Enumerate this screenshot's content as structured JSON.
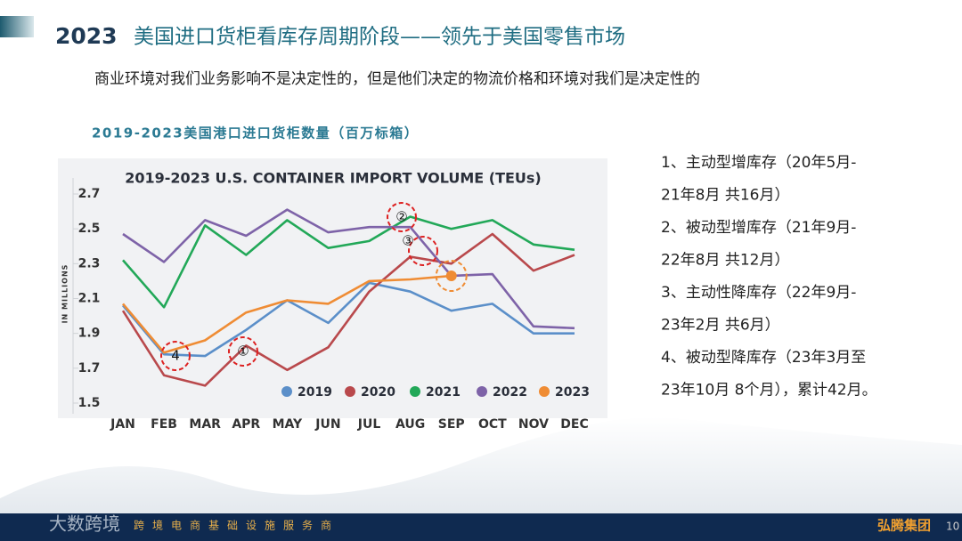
{
  "title_year": "2023",
  "title": "美国进口货柜看库存周期阶段——领先于美国零售市场",
  "subtitle": "商业环境对我们业务影响不是决定性的，但是他们决定的物流价格和环境对我们是决定性的",
  "chart_caption": "2019-2023美国港口进口货柜数量（百万标箱）",
  "chart_data": {
    "type": "line",
    "title": "2019-2023 U.S. CONTAINER IMPORT VOLUME (TEUs)",
    "y_label": "IN MILLIONS",
    "categories": [
      "JAN",
      "FEB",
      "MAR",
      "APR",
      "MAY",
      "JUN",
      "JUL",
      "AUG",
      "SEP",
      "OCT",
      "NOV",
      "DEC"
    ],
    "ylim": [
      1.5,
      2.7
    ],
    "yticks": [
      1.5,
      1.7,
      1.9,
      2.1,
      2.3,
      2.5,
      2.7
    ],
    "legend": "bottom-right",
    "series": [
      {
        "name": "2019",
        "color": "#5b8fc9",
        "values": [
          2.06,
          1.78,
          1.77,
          1.92,
          2.09,
          1.96,
          2.19,
          2.14,
          2.03,
          2.07,
          1.9,
          1.9
        ]
      },
      {
        "name": "2020",
        "color": "#b9494c",
        "values": [
          2.03,
          1.66,
          1.6,
          1.83,
          1.69,
          1.82,
          2.14,
          2.34,
          2.3,
          2.47,
          2.26,
          2.35
        ]
      },
      {
        "name": "2021",
        "color": "#22a858",
        "values": [
          2.32,
          2.05,
          2.52,
          2.35,
          2.55,
          2.39,
          2.43,
          2.57,
          2.5,
          2.55,
          2.41,
          2.38
        ]
      },
      {
        "name": "2022",
        "color": "#7e63a8",
        "values": [
          2.47,
          2.31,
          2.55,
          2.46,
          2.61,
          2.48,
          2.51,
          2.51,
          2.23,
          2.24,
          1.94,
          1.93
        ]
      },
      {
        "name": "2023",
        "color": "#ef8c34",
        "values": [
          2.07,
          1.79,
          1.86,
          2.02,
          2.09,
          2.07,
          2.2,
          2.21,
          2.23,
          null,
          null,
          null
        ]
      }
    ],
    "annotations": [
      "4",
      "①",
      "②",
      "③"
    ]
  },
  "notes": [
    "1、主动型增库存（20年5月-",
    "21年8月 共16月）",
    "2、被动型增库存（21年9月-",
    "22年8月 共12月）",
    "3、主动性降库存（22年9月-",
    "23年2月 共6月）",
    "4、被动型降库存（23年3月至",
    "23年10月 8个月），累计42月。"
  ],
  "footer": {
    "watermark": "大数跨境",
    "tagline": "跨境电商基础设施服务商",
    "brand": "弘腾集团",
    "page": "10"
  }
}
